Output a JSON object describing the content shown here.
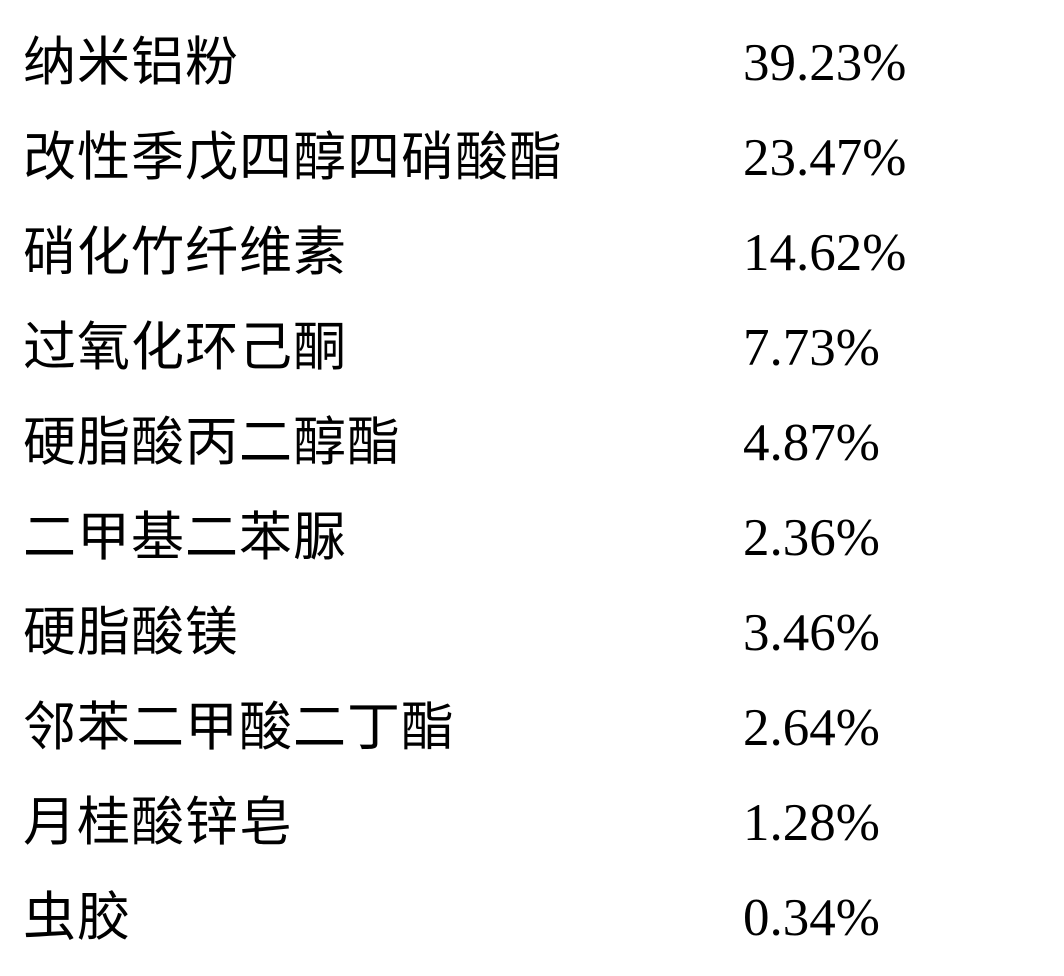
{
  "rows": [
    {
      "label": "纳米铝粉",
      "value": "39.23%"
    },
    {
      "label": "改性季戊四醇四硝酸酯",
      "value": "23.47%"
    },
    {
      "label": "硝化竹纤维素",
      "value": "14.62%"
    },
    {
      "label": "过氧化环己酮",
      "value": "7.73%"
    },
    {
      "label": "硬脂酸丙二醇酯",
      "value": "4.87%"
    },
    {
      "label": "二甲基二苯脲",
      "value": "2.36%"
    },
    {
      "label": "硬脂酸镁",
      "value": "3.46%"
    },
    {
      "label": "邻苯二甲酸二丁酯",
      "value": "2.64%"
    },
    {
      "label": "月桂酸锌皂",
      "value": "1.28%"
    },
    {
      "label": "虫胶",
      "value": "0.34%"
    }
  ]
}
